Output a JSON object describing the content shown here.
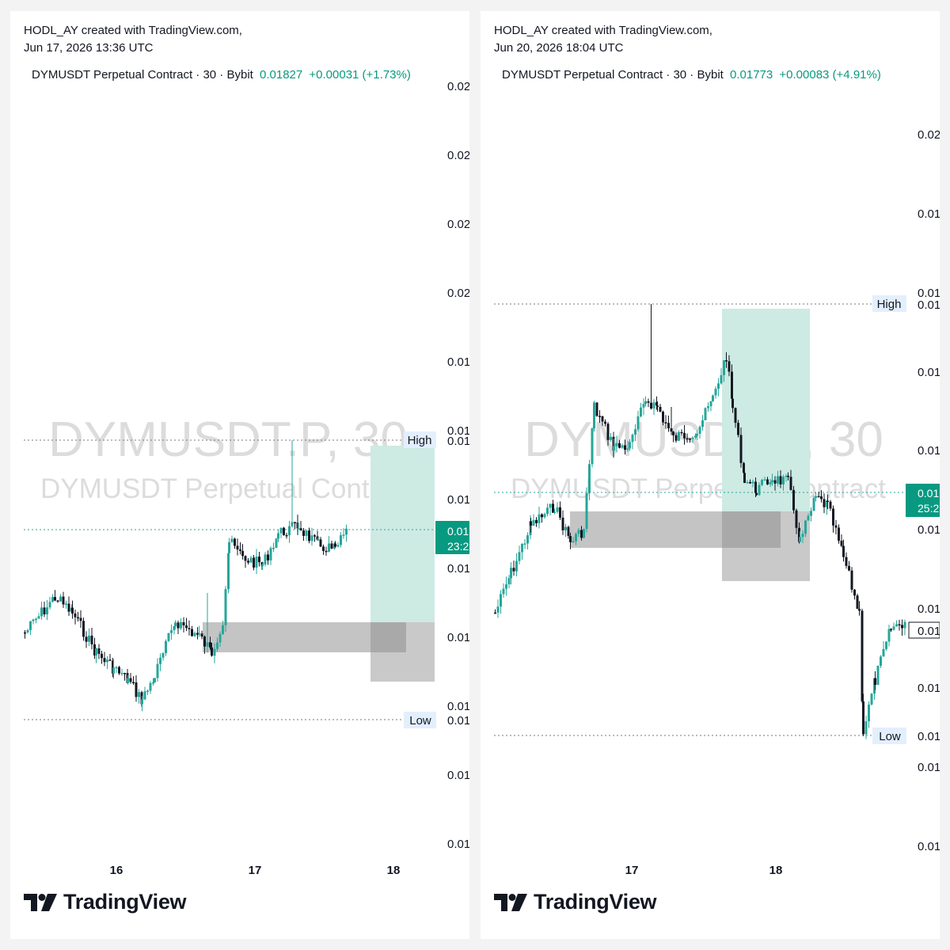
{
  "colors": {
    "up": "#26a69a",
    "down": "#131722",
    "tp_zone": "#cdeae3",
    "sl_zone": "#c9c9c9",
    "price_tag": "#089981",
    "high_low_tag": "#e3effd",
    "watermark": "#dcdcdc"
  },
  "brand": {
    "name": "TradingView",
    "logo_icon": "tradingview-logo-icon"
  },
  "panels": [
    {
      "credit_line1": "HODL_AY created with TradingView.com,",
      "credit_line2": "Jun 17, 2026 13:36 UTC",
      "header": {
        "symbol": "DYMUSDT Perpetual Contract · 30 · Bybit",
        "price": "0.01827",
        "change": "+0.00031 (+1.73%)"
      },
      "watermark": {
        "line1": "DYMUSDT.P, 30",
        "line2": "DYMUSDT Perpetual Contract"
      },
      "price_tag": {
        "value": "0.01",
        "timer": "23:2"
      },
      "high_label": "High",
      "high_value": "0.01",
      "low_label": "Low",
      "low_value": "0.01",
      "chart_data": {
        "type": "candlestick",
        "timeframe": "30",
        "y_tick_labels": [
          "0.02",
          "0.02",
          "0.02",
          "0.02",
          "0.01",
          "0.01",
          "0.01",
          "0.01",
          "0.01",
          "0.01",
          "0.01",
          "0.01"
        ],
        "x_tick_labels": [
          "16",
          "17",
          "18"
        ],
        "last_price": 0.01827,
        "annotations": [
          "High",
          "Low"
        ],
        "zones": [
          "take-profit zone (green)",
          "stop-loss zone (gray)",
          "demand block (gray)"
        ]
      }
    },
    {
      "credit_line1": "HODL_AY created with TradingView.com,",
      "credit_line2": "Jun 20, 2026 18:04 UTC",
      "header": {
        "symbol": "DYMUSDT Perpetual Contract · 30 · Bybit",
        "price": "0.01773",
        "change": "+0.00083 (+4.91%)"
      },
      "watermark": {
        "line1": "DYMUSDT.P, 30",
        "line2": "DYMUSDT Perpetual Contract"
      },
      "price_tag": {
        "value": "0.01",
        "timer": "25:2"
      },
      "box_label": "0.01",
      "high_label": "High",
      "high_value": "0.01",
      "low_label": "Low",
      "low_value": "0.01",
      "chart_data": {
        "type": "candlestick",
        "timeframe": "30",
        "y_tick_labels": [
          "0.02",
          "0.01",
          "0.01",
          "0.01",
          "0.01",
          "0.01",
          "0.01",
          "0.01",
          "0.01",
          "0.01"
        ],
        "x_tick_labels": [
          "17",
          "18"
        ],
        "last_price": 0.01773,
        "annotations": [
          "High",
          "Low"
        ],
        "zones": [
          "take-profit zone (green)",
          "stop-loss zone (gray)",
          "demand block (gray)"
        ]
      }
    }
  ]
}
